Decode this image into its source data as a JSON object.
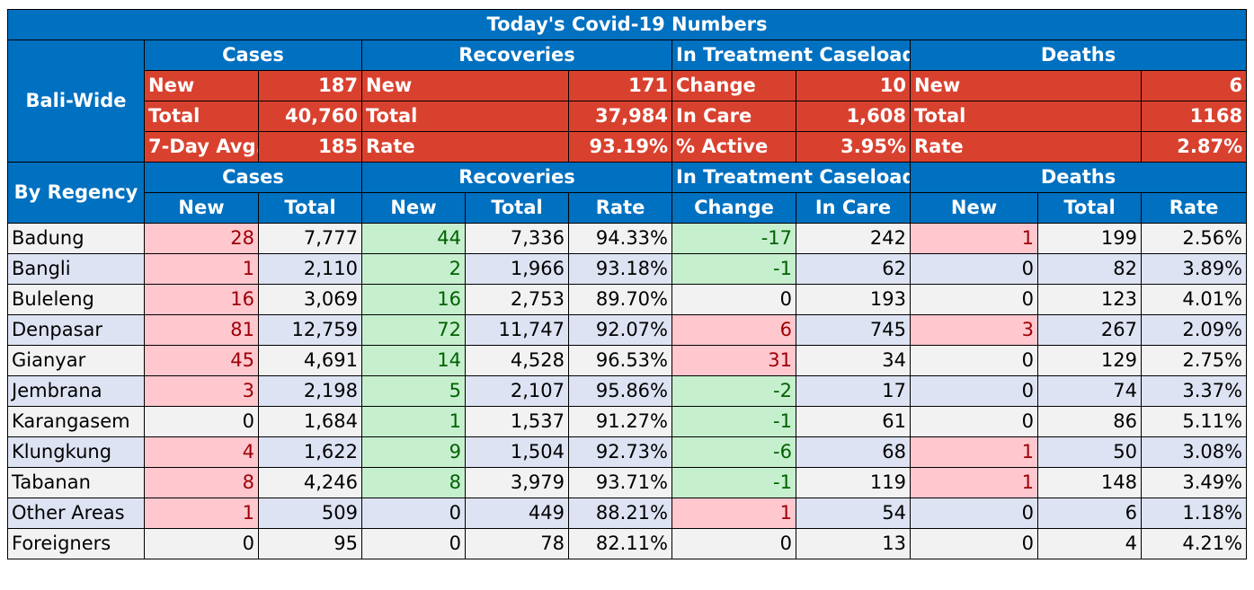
{
  "title": "Today's Covid-19 Numbers",
  "bali_wide": {
    "label": "Bali-Wide",
    "groups": [
      "Cases",
      "Recoveries",
      "In Treatment Caseload",
      "Deaths"
    ],
    "rows": [
      [
        [
          "New",
          "187"
        ],
        [
          "New",
          "171"
        ],
        [
          "Change",
          "10"
        ],
        [
          "New",
          "6"
        ]
      ],
      [
        [
          "Total",
          "40,760"
        ],
        [
          "Total",
          "37,984"
        ],
        [
          "In Care",
          "1,608"
        ],
        [
          "Total",
          "1168"
        ]
      ],
      [
        [
          "7-Day Avg.",
          "185"
        ],
        [
          "Rate",
          "93.19%"
        ],
        [
          "% Active",
          "3.95%"
        ],
        [
          "Rate",
          "2.87%"
        ]
      ]
    ]
  },
  "by_regency": {
    "label": "By Regency",
    "groups": [
      "Cases",
      "Recoveries",
      "In Treatment Caseload",
      "Deaths"
    ],
    "columns": [
      "New",
      "Total",
      "New",
      "Total",
      "Rate",
      "Change",
      "In Care",
      "New",
      "Total",
      "Rate"
    ],
    "rows": [
      {
        "name": "Badung",
        "values": [
          "28",
          "7,777",
          "44",
          "7,336",
          "94.33%",
          "-17",
          "242",
          "1",
          "199",
          "2.56%"
        ]
      },
      {
        "name": "Bangli",
        "values": [
          "1",
          "2,110",
          "2",
          "1,966",
          "93.18%",
          "-1",
          "62",
          "0",
          "82",
          "3.89%"
        ]
      },
      {
        "name": "Buleleng",
        "values": [
          "16",
          "3,069",
          "16",
          "2,753",
          "89.70%",
          "0",
          "193",
          "0",
          "123",
          "4.01%"
        ]
      },
      {
        "name": "Denpasar",
        "values": [
          "81",
          "12,759",
          "72",
          "11,747",
          "92.07%",
          "6",
          "745",
          "3",
          "267",
          "2.09%"
        ]
      },
      {
        "name": "Gianyar",
        "values": [
          "45",
          "4,691",
          "14",
          "4,528",
          "96.53%",
          "31",
          "34",
          "0",
          "129",
          "2.75%"
        ]
      },
      {
        "name": "Jembrana",
        "values": [
          "3",
          "2,198",
          "5",
          "2,107",
          "95.86%",
          "-2",
          "17",
          "0",
          "74",
          "3.37%"
        ]
      },
      {
        "name": "Karangasem",
        "values": [
          "0",
          "1,684",
          "1",
          "1,537",
          "91.27%",
          "-1",
          "61",
          "0",
          "86",
          "5.11%"
        ]
      },
      {
        "name": "Klungkung",
        "values": [
          "4",
          "1,622",
          "9",
          "1,504",
          "92.73%",
          "-6",
          "68",
          "1",
          "50",
          "3.08%"
        ]
      },
      {
        "name": "Tabanan",
        "values": [
          "8",
          "4,246",
          "8",
          "3,979",
          "93.71%",
          "-1",
          "119",
          "1",
          "148",
          "3.49%"
        ]
      },
      {
        "name": "Other Areas",
        "values": [
          "1",
          "509",
          "0",
          "449",
          "88.21%",
          "1",
          "54",
          "0",
          "6",
          "1.18%"
        ]
      },
      {
        "name": "Foreigners",
        "values": [
          "0",
          "95",
          "0",
          "78",
          "82.11%",
          "0",
          "13",
          "0",
          "4",
          "4.21%"
        ]
      }
    ]
  }
}
